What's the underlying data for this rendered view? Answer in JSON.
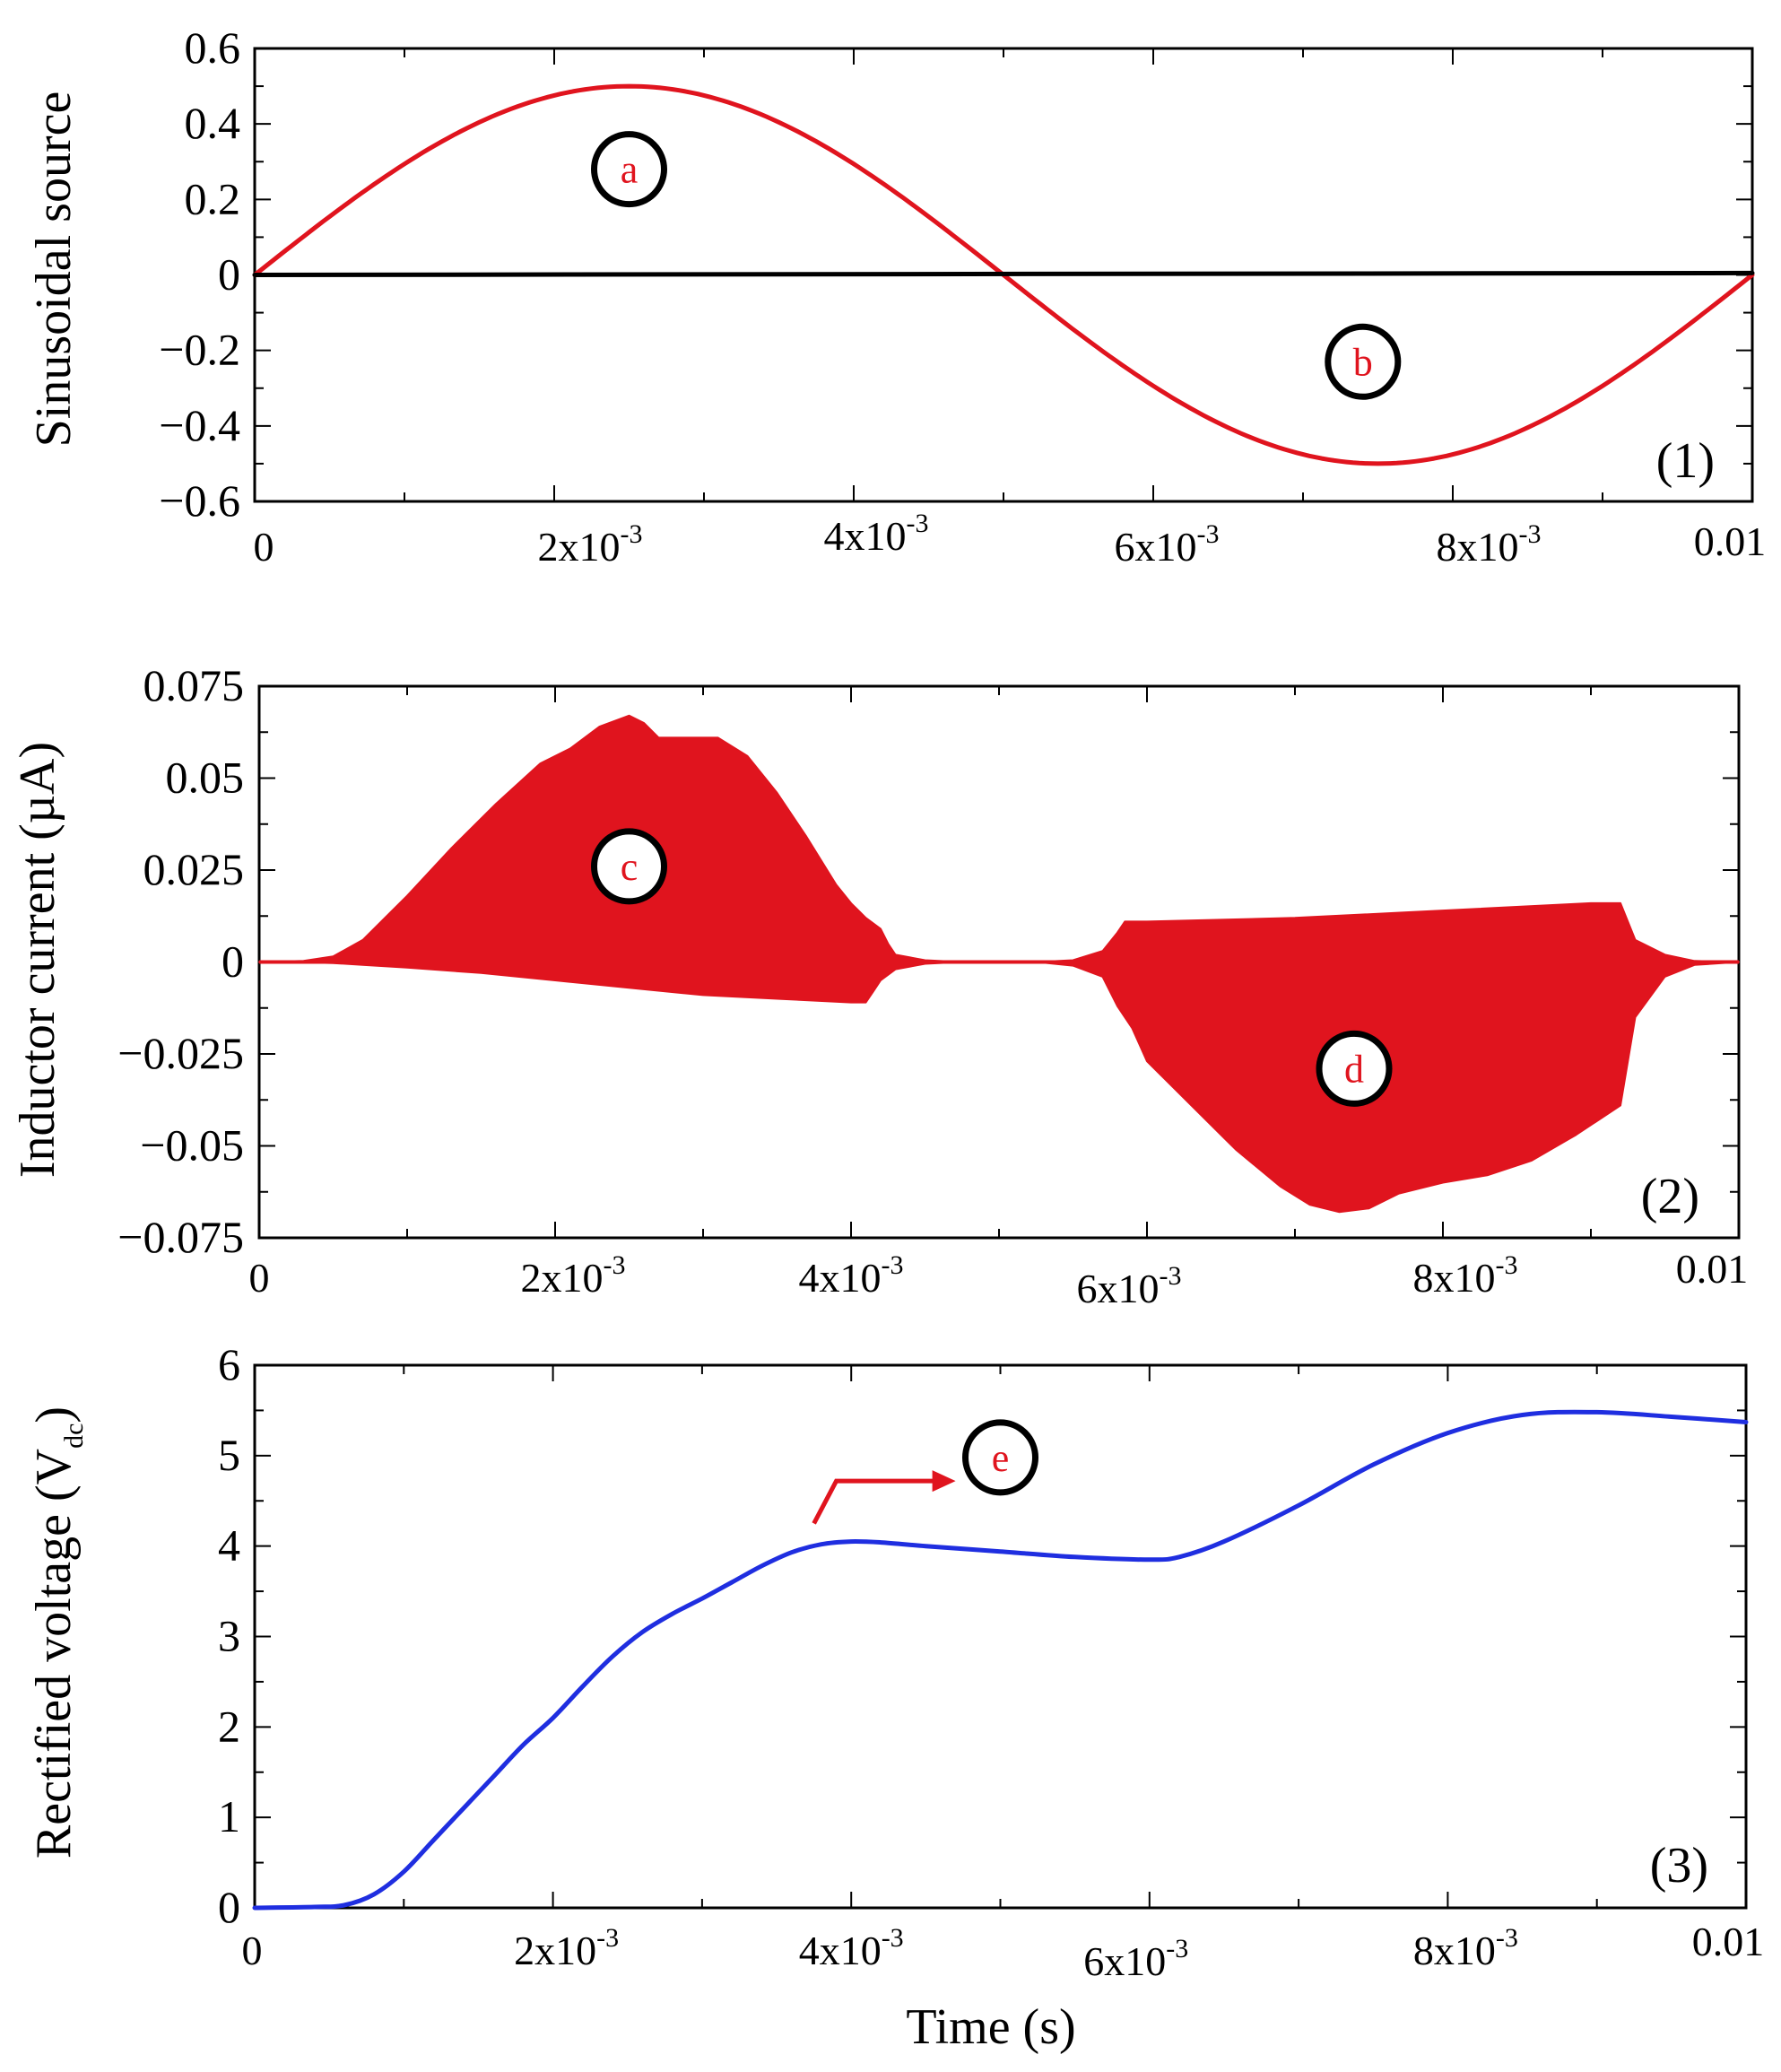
{
  "figure": {
    "x_axis_title": "Time (s)",
    "marker_text_color": "#e0141e",
    "marker_ring_color": "#000000"
  },
  "chart_data": [
    {
      "type": "line",
      "panel_label": "(1)",
      "ylabel": "Sinusoidal source",
      "xlabel": "",
      "xlim": [
        0,
        0.01
      ],
      "ylim": [
        -0.6,
        0.6
      ],
      "yticks": [
        0.6,
        0.4,
        0.2,
        0,
        -0.2,
        -0.4,
        -0.6
      ],
      "ytick_labels": [
        "0.6",
        "0.4",
        "0.2",
        "0",
        "−0.2",
        "−0.4",
        "−0.6"
      ],
      "xticks": [
        0,
        0.002,
        0.004,
        0.006,
        0.008,
        0.01
      ],
      "xtick_labels": [
        {
          "base": "0",
          "sup": ""
        },
        {
          "base": "2x10",
          "sup": "-3"
        },
        {
          "base": "4x10",
          "sup": "-3"
        },
        {
          "base": "6x10",
          "sup": "-3"
        },
        {
          "base": "8x10",
          "sup": "-3"
        },
        {
          "base": "0.01",
          "sup": ""
        }
      ],
      "series": [
        {
          "name": "source",
          "color": "#e0141e",
          "function": "sine",
          "amplitude": 0.5,
          "period": 0.01,
          "phase_x": 0
        },
        {
          "name": "zero line",
          "color": "#000000",
          "x": [
            0,
            0.01
          ],
          "y": [
            0,
            0.005
          ]
        }
      ],
      "annotations": [
        {
          "text": "a",
          "x": 0.0025,
          "y": 0.28
        },
        {
          "text": "b",
          "x": 0.0074,
          "y": -0.23
        }
      ]
    },
    {
      "type": "area",
      "panel_label": "(2)",
      "ylabel": "Inductor current (µA)",
      "xlabel": "",
      "xlim": [
        0,
        0.01
      ],
      "ylim": [
        -0.075,
        0.075
      ],
      "yticks": [
        0.075,
        0.05,
        0.025,
        0,
        -0.025,
        -0.05,
        -0.075
      ],
      "ytick_labels": [
        "0.075",
        "0.05",
        "0.025",
        "0",
        "−0.025",
        "−0.05",
        "−0.075"
      ],
      "xticks": [
        0,
        0.002,
        0.004,
        0.006,
        0.008,
        0.01
      ],
      "xtick_labels": [
        {
          "base": "0",
          "sup": ""
        },
        {
          "base": "2x10",
          "sup": "-3"
        },
        {
          "base": "4x10",
          "sup": "-3"
        },
        {
          "base": "6x10",
          "sup": "-3"
        },
        {
          "base": "8x10",
          "sup": "-3"
        },
        {
          "base": "0.01",
          "sup": ""
        }
      ],
      "series": [
        {
          "name": "envelope upper",
          "color": "#e0141e",
          "x": [
            0,
            0.0003,
            0.0005,
            0.0007,
            0.001,
            0.0013,
            0.0016,
            0.0019,
            0.002,
            0.0021,
            0.0023,
            0.0025,
            0.0026,
            0.0027,
            0.0029,
            0.0031,
            0.0033,
            0.0035,
            0.0037,
            0.0039,
            0.004,
            0.0041,
            0.0042,
            0.00425,
            0.0043,
            0.0045,
            0.0047,
            0.005,
            0.0053,
            0.0055,
            0.0057,
            0.0058,
            0.00585,
            0.006,
            0.007,
            0.008,
            0.009,
            0.0092,
            0.0093,
            0.0095,
            0.0097,
            0.01
          ],
          "y": [
            0,
            0.0003,
            0.0015,
            0.006,
            0.018,
            0.031,
            0.043,
            0.054,
            0.056,
            0.058,
            0.064,
            0.067,
            0.065,
            0.061,
            0.061,
            0.061,
            0.056,
            0.046,
            0.034,
            0.021,
            0.016,
            0.012,
            0.009,
            0.005,
            0.002,
            0.0005,
            0.0001,
            0,
            0.0001,
            0.0005,
            0.003,
            0.008,
            0.011,
            0.011,
            0.012,
            0.014,
            0.016,
            0.016,
            0.006,
            0.002,
            0.0003,
            0
          ]
        },
        {
          "name": "envelope lower",
          "color": "#e0141e",
          "x": [
            0,
            0.0003,
            0.0005,
            0.0007,
            0.001,
            0.0015,
            0.002,
            0.0025,
            0.003,
            0.0035,
            0.004,
            0.0041,
            0.00415,
            0.0042,
            0.0043,
            0.0045,
            0.0047,
            0.005,
            0.0053,
            0.0055,
            0.0057,
            0.0058,
            0.0059,
            0.006,
            0.0063,
            0.0066,
            0.0069,
            0.0071,
            0.0073,
            0.0075,
            0.0077,
            0.008,
            0.0083,
            0.0086,
            0.0089,
            0.0092,
            0.0093,
            0.0095,
            0.0097,
            0.01
          ],
          "y": [
            0,
            -0.0001,
            -0.0003,
            -0.0008,
            -0.0015,
            -0.003,
            -0.005,
            -0.007,
            -0.009,
            -0.01,
            -0.011,
            -0.011,
            -0.008,
            -0.005,
            -0.002,
            -0.0005,
            -0.0001,
            0,
            -0.0002,
            -0.001,
            -0.004,
            -0.012,
            -0.018,
            -0.027,
            -0.039,
            -0.051,
            -0.061,
            -0.066,
            -0.068,
            -0.067,
            -0.063,
            -0.06,
            -0.058,
            -0.054,
            -0.047,
            -0.039,
            -0.015,
            -0.004,
            -0.0008,
            0
          ]
        }
      ],
      "annotations": [
        {
          "text": "c",
          "x": 0.0025,
          "y": 0.026
        },
        {
          "text": "d",
          "x": 0.0074,
          "y": -0.029
        }
      ]
    },
    {
      "type": "line",
      "panel_label": "(3)",
      "ylabel": "Rectified voltage (V",
      "ylabel_sub": "dc",
      "ylabel_close": ")",
      "xlabel": "Time (s)",
      "xlim": [
        0,
        0.01
      ],
      "ylim": [
        0,
        6
      ],
      "yticks": [
        6,
        5,
        4,
        3,
        2,
        1,
        0
      ],
      "ytick_labels": [
        "6",
        "5",
        "4",
        "3",
        "2",
        "1",
        "0"
      ],
      "xticks": [
        0,
        0.002,
        0.004,
        0.006,
        0.008,
        0.01
      ],
      "xtick_labels": [
        {
          "base": "0",
          "sup": ""
        },
        {
          "base": "2x10",
          "sup": "-3"
        },
        {
          "base": "4x10",
          "sup": "-3"
        },
        {
          "base": "6x10",
          "sup": "-3"
        },
        {
          "base": "8x10",
          "sup": "-3"
        },
        {
          "base": "0.01",
          "sup": ""
        }
      ],
      "series": [
        {
          "name": "Vdc",
          "color": "#1f2ee0",
          "x": [
            0,
            0.0004,
            0.0006,
            0.0008,
            0.001,
            0.0012,
            0.0014,
            0.0016,
            0.0018,
            0.002,
            0.0022,
            0.0024,
            0.0026,
            0.0028,
            0.003,
            0.0032,
            0.0034,
            0.0036,
            0.0038,
            0.004,
            0.0042,
            0.0045,
            0.005,
            0.0055,
            0.006,
            0.0062,
            0.0065,
            0.007,
            0.0075,
            0.008,
            0.0085,
            0.009,
            0.0095,
            0.01
          ],
          "y": [
            0,
            0.01,
            0.03,
            0.15,
            0.4,
            0.75,
            1.1,
            1.45,
            1.8,
            2.1,
            2.45,
            2.78,
            3.05,
            3.25,
            3.42,
            3.6,
            3.78,
            3.93,
            4.02,
            4.05,
            4.04,
            4.0,
            3.94,
            3.88,
            3.85,
            3.88,
            4.05,
            4.45,
            4.9,
            5.25,
            5.45,
            5.48,
            5.43,
            5.37
          ]
        }
      ],
      "annotations": [
        {
          "text": "e",
          "x": 0.005,
          "y": 4.98,
          "arrow_from": [
            0.00375,
            4.25
          ],
          "arrow_mid": [
            0.0039,
            4.72
          ],
          "arrow_to": [
            0.0047,
            4.72
          ]
        }
      ]
    }
  ]
}
